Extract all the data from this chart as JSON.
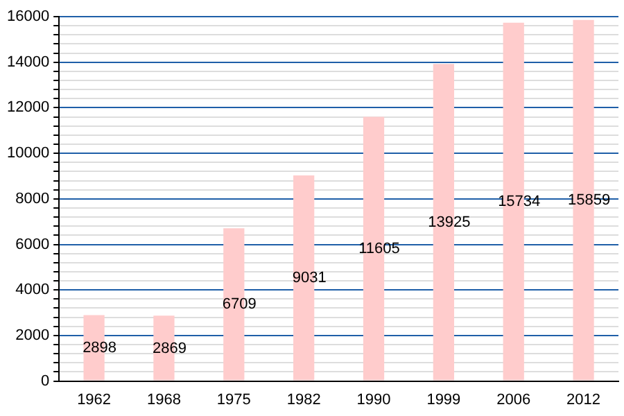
{
  "chart_data": {
    "type": "bar",
    "categories": [
      "1962",
      "1968",
      "1975",
      "1982",
      "1990",
      "1999",
      "2006",
      "2012"
    ],
    "values": [
      2898,
      2869,
      6709,
      9031,
      11605,
      13925,
      15734,
      15859
    ],
    "color": "#ffcccc",
    "data_labels": true,
    "grid": "y",
    "legend": false,
    "ylim": [
      0,
      16000
    ],
    "yticks": [
      0,
      {
        "value": 400,
        "label": null
      },
      {
        "value": 800,
        "label": null
      },
      {
        "value": 1200,
        "label": null
      },
      {
        "value": 1600,
        "label": null
      },
      2000,
      {
        "value": 2400,
        "label": null
      },
      {
        "value": 2800,
        "label": null
      },
      {
        "value": 3200,
        "label": null
      },
      {
        "value": 3600,
        "label": null
      },
      4000,
      {
        "value": 4400,
        "label": null
      },
      {
        "value": 4800,
        "label": null
      },
      {
        "value": 5200,
        "label": null
      },
      {
        "value": 5600,
        "label": null
      },
      6000,
      {
        "value": 6400,
        "label": null
      },
      {
        "value": 6800,
        "label": null
      },
      {
        "value": 7200,
        "label": null
      },
      {
        "value": 7600,
        "label": null
      },
      8000,
      {
        "value": 8400,
        "label": null
      },
      {
        "value": 8800,
        "label": null
      },
      {
        "value": 9200,
        "label": null
      },
      {
        "value": 9600,
        "label": null
      },
      10000,
      {
        "value": 10400,
        "label": null
      },
      {
        "value": 10800,
        "label": null
      },
      {
        "value": 11200,
        "label": null
      },
      {
        "value": 11600,
        "label": null
      },
      12000,
      {
        "value": 12400,
        "label": null
      },
      {
        "value": 12800,
        "label": null
      },
      {
        "value": 13200,
        "label": null
      },
      {
        "value": 13600,
        "label": null
      },
      14000,
      {
        "value": 14400,
        "label": null
      },
      {
        "value": 14800,
        "label": null
      },
      {
        "value": 15200,
        "label": null
      },
      {
        "value": 15600,
        "label": null
      },
      16000
    ]
  }
}
